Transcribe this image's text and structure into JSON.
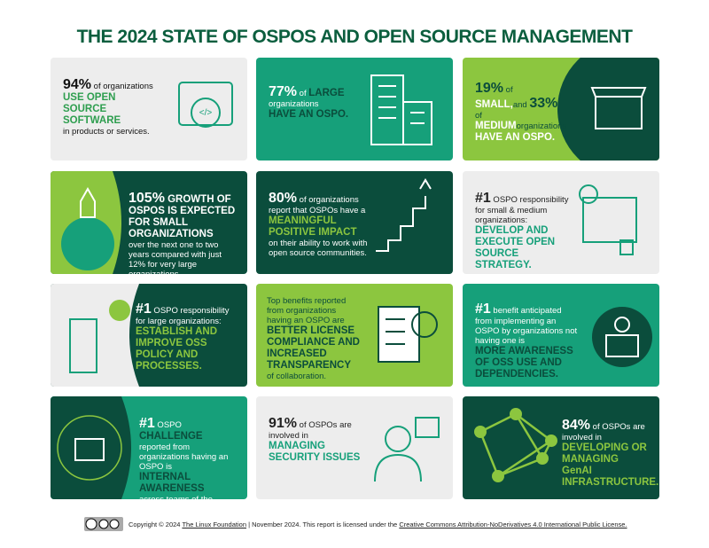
{
  "header": {
    "title": "THE 2024 STATE OF OSPOS AND OPEN SOURCE MANAGEMENT"
  },
  "cards": [
    {
      "parts": [
        "94%",
        " of organizations ",
        "USE OPEN SOURCE SOFTWARE",
        "in products or services."
      ]
    },
    {
      "parts": [
        "77%",
        " of ",
        "LARGE",
        "organizations",
        "HAVE AN OSPO."
      ]
    },
    {
      "parts": [
        "19%",
        " of ",
        "SMALL,",
        "and ",
        "33%",
        " of ",
        "MEDIUM",
        "organizations ",
        "HAVE AN OSPO."
      ]
    },
    {
      "parts": [
        "105%",
        " GROWTH OF OSPOS IS EXPECTED FOR SMALL ORGANIZATIONS",
        "over the next one to two years compared with just 12% for very large organizations."
      ]
    },
    {
      "parts": [
        "80%",
        " of organizations report that OSPOs have a ",
        "MEANINGFUL POSITIVE IMPACT",
        "on their ability to work with open source communities."
      ]
    },
    {
      "parts": [
        "#1",
        " OSPO responsibility for small & medium organizations: ",
        "DEVELOP AND EXECUTE OPEN SOURCE STRATEGY."
      ]
    },
    {
      "parts": [
        "#1",
        " OSPO responsibility for large organizations: ",
        "ESTABLISH AND IMPROVE OSS POLICY AND PROCESSES."
      ]
    },
    {
      "parts": [
        "Top benefits reported from organizations having an OSPO are ",
        "BETTER LICENSE COMPLIANCE AND INCREASED TRANSPARENCY",
        "of collaboration."
      ]
    },
    {
      "parts": [
        "#1",
        " benefit anticipated from implementing an OSPO by organizations not having one is ",
        "MORE AWARENESS OF OSS USE AND DEPENDENCIES."
      ]
    },
    {
      "parts": [
        "#1",
        " OSPO ",
        "CHALLENGE",
        "reported from organizations having an OSPO is ",
        "INTERNAL AWARENESS",
        "across teams of the program or initiative."
      ]
    },
    {
      "parts": [
        "91%",
        " of OSPOs are involved in ",
        "MANAGING SECURITY ISSUES"
      ]
    },
    {
      "parts": [
        "84%",
        " of OSPOs are involved in ",
        "DEVELOPING OR MANAGING GenAI INFRASTRUCTURE."
      ]
    }
  ],
  "footer": {
    "parts": [
      "Copyright © 2024 ",
      "The Linux Foundation",
      " | November 2024. This report is licensed under the ",
      "Creative Commons Attribution-NoDerivatives 4.0 International Public License."
    ]
  }
}
